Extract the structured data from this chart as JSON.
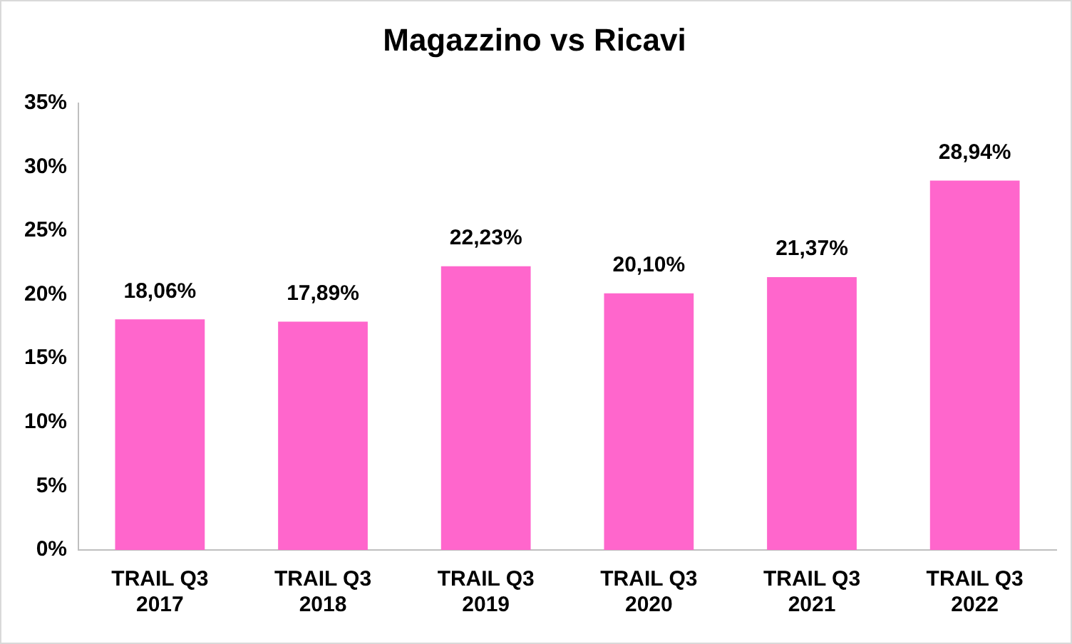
{
  "chart_data": {
    "type": "bar",
    "title": "Magazzino vs Ricavi",
    "categories": [
      "TRAIL Q3 2017",
      "TRAIL Q3 2018",
      "TRAIL Q3 2019",
      "TRAIL Q3 2020",
      "TRAIL Q3 2021",
      "TRAIL Q3 2022"
    ],
    "values": [
      18.06,
      17.89,
      22.23,
      20.1,
      21.37,
      28.94
    ],
    "value_labels": [
      "18,06%",
      "17,89%",
      "22,23%",
      "20,10%",
      "21,37%",
      "28,94%"
    ],
    "color": "#ff66cc",
    "ylim": [
      0,
      35
    ],
    "yticks": [
      {
        "value": 0,
        "label": "0%"
      },
      {
        "value": 5,
        "label": "5%"
      },
      {
        "value": 10,
        "label": "10%"
      },
      {
        "value": 15,
        "label": "15%"
      },
      {
        "value": 20,
        "label": "20%"
      },
      {
        "value": 25,
        "label": "25%"
      },
      {
        "value": 30,
        "label": "30%"
      },
      {
        "value": 35,
        "label": "35%"
      }
    ],
    "grid": false,
    "legend": false
  }
}
